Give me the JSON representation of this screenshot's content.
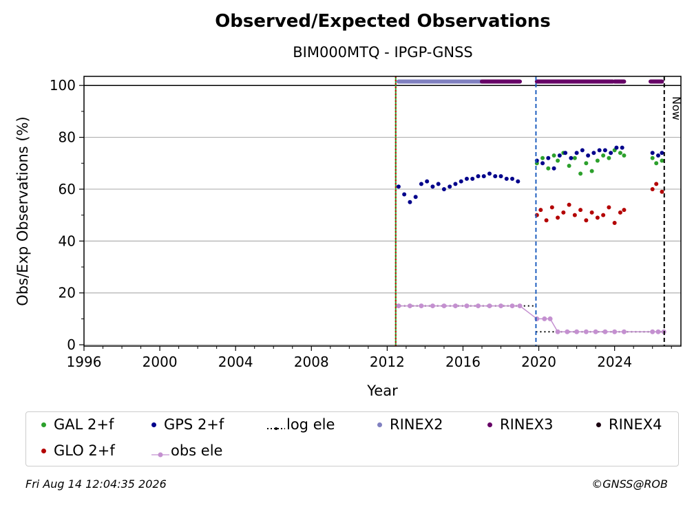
{
  "chart_data": {
    "type": "scatter",
    "title": "Observed/Expected Observations",
    "subtitle": "BIM000MTQ - IPGP-GNSS",
    "xlabel": "Year",
    "ylabel": "Obs/Exp Observations (%)",
    "xlim": [
      1996,
      2027.5
    ],
    "ylim": [
      -0.5,
      103.5
    ],
    "x_ticks": [
      1996,
      2000,
      2004,
      2008,
      2012,
      2016,
      2020,
      2024
    ],
    "y_ticks": [
      0,
      20,
      40,
      60,
      80,
      100
    ],
    "grid": "horizontal",
    "legend_position": "bottom",
    "now_label": "Now",
    "now_x": 2026.62,
    "vertical_lines": [
      {
        "x": 2012.45,
        "color": "#2ca02c",
        "style": "solid"
      },
      {
        "x": 2012.45,
        "color": "#cc0000",
        "style": "dotted"
      },
      {
        "x": 2019.85,
        "color": "#1f5fbf",
        "style": "dashed"
      },
      {
        "x": 2026.62,
        "color": "#000000",
        "style": "dashed"
      }
    ],
    "series": [
      {
        "name": "GAL 2+f",
        "color": "#2ca02c",
        "x": [
          2019.9,
          2020.2,
          2020.5,
          2020.8,
          2021.0,
          2021.3,
          2021.6,
          2021.9,
          2022.2,
          2022.5,
          2022.8,
          2023.1,
          2023.4,
          2023.7,
          2024.0,
          2024.3,
          2024.5,
          2026.0,
          2026.2,
          2026.5
        ],
        "y": [
          70,
          72,
          68,
          73,
          71,
          74,
          69,
          72,
          66,
          70,
          67,
          71,
          73,
          72,
          75,
          74,
          73,
          72,
          70,
          71
        ]
      },
      {
        "name": "GLO 2+f",
        "color": "#b30000",
        "x": [
          2019.9,
          2020.1,
          2020.4,
          2020.7,
          2021.0,
          2021.3,
          2021.6,
          2021.9,
          2022.2,
          2022.5,
          2022.8,
          2023.1,
          2023.4,
          2023.7,
          2024.0,
          2024.3,
          2024.5,
          2026.0,
          2026.2,
          2026.5
        ],
        "y": [
          50,
          52,
          48,
          53,
          49,
          51,
          54,
          50,
          52,
          48,
          51,
          49,
          50,
          53,
          47,
          51,
          52,
          60,
          62,
          59
        ]
      },
      {
        "name": "GPS 2+f",
        "color": "#00008b",
        "x": [
          2012.6,
          2012.9,
          2013.2,
          2013.5,
          2013.8,
          2014.1,
          2014.4,
          2014.7,
          2015.0,
          2015.3,
          2015.6,
          2015.9,
          2016.2,
          2016.5,
          2016.8,
          2017.1,
          2017.4,
          2017.7,
          2018.0,
          2018.3,
          2018.6,
          2018.9,
          2019.9,
          2020.2,
          2020.5,
          2020.8,
          2021.1,
          2021.4,
          2021.7,
          2022.0,
          2022.3,
          2022.6,
          2022.9,
          2023.2,
          2023.5,
          2023.8,
          2024.1,
          2024.4,
          2026.0,
          2026.3,
          2026.5
        ],
        "y": [
          61,
          58,
          55,
          57,
          62,
          63,
          61,
          62,
          60,
          61,
          62,
          63,
          64,
          64,
          65,
          65,
          66,
          65,
          65,
          64,
          64,
          63,
          71,
          70,
          72,
          68,
          73,
          74,
          72,
          74,
          75,
          73,
          74,
          75,
          75,
          74,
          76,
          76,
          74,
          73,
          74
        ]
      },
      {
        "name": "log ele",
        "color": "#000000",
        "segments": [
          {
            "x": [
              2012.45,
              2019.85
            ],
            "y": [
              15,
              15
            ]
          },
          {
            "x": [
              2019.85,
              2026.62
            ],
            "y": [
              5,
              5
            ]
          }
        ]
      },
      {
        "name": "obs ele",
        "color": "#c490d0",
        "x": [
          2012.6,
          2013.2,
          2013.8,
          2014.4,
          2015.0,
          2015.6,
          2016.2,
          2016.8,
          2017.4,
          2018.0,
          2018.6,
          2019.0,
          2019.9,
          2020.3,
          2020.6,
          2021.0,
          2021.5,
          2022.0,
          2022.5,
          2023.0,
          2023.5,
          2024.0,
          2024.5,
          2026.0,
          2026.3,
          2026.6
        ],
        "y": [
          15,
          15,
          15,
          15,
          15,
          15,
          15,
          15,
          15,
          15,
          15,
          15,
          10,
          10,
          10,
          5,
          5,
          5,
          5,
          5,
          5,
          5,
          5,
          5,
          5,
          5
        ]
      },
      {
        "name": "RINEX2",
        "color": "#8080c0",
        "x_range": [
          2012.6,
          2017.0
        ],
        "y": 101.5
      },
      {
        "name": "RINEX3",
        "color": "#660066",
        "ranges": [
          [
            2017.0,
            2019.0
          ],
          [
            2019.9,
            2021.5
          ],
          [
            2021.5,
            2023.9
          ],
          [
            2024.0,
            2024.5
          ],
          [
            2025.9,
            2026.5
          ]
        ],
        "y": 101.5
      },
      {
        "name": "RINEX4",
        "color": "#1a0010"
      }
    ]
  },
  "footer": {
    "date": "Fri Aug 14 12:04:35 2026",
    "copyright": "©GNSS@ROB"
  }
}
